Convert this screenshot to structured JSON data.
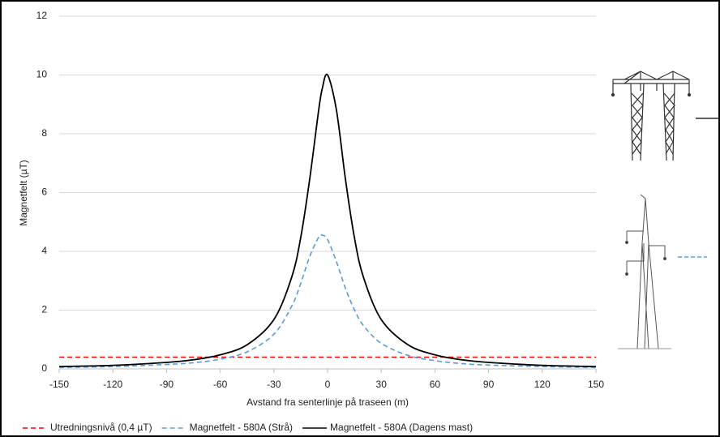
{
  "chart_data": {
    "type": "line",
    "ylabel": "Magnetfelt (µT)",
    "xlabel": "Avstand fra senterlinje på traseen (m)",
    "x": [
      -150,
      -120,
      -90,
      -75,
      -60,
      -45,
      -30,
      -20,
      -15,
      -10,
      -5,
      -3,
      0,
      5,
      10,
      15,
      20,
      30,
      45,
      60,
      75,
      90,
      120,
      150
    ],
    "series": [
      {
        "name": "Utredningsnivå (0,4 µT)",
        "color": "#ff0000",
        "linestyle": "dashed",
        "values": [
          0.4,
          0.4,
          0.4,
          0.4,
          0.4,
          0.4,
          0.4,
          0.4,
          0.4,
          0.4,
          0.4,
          0.4,
          0.4,
          0.4,
          0.4,
          0.4,
          0.4,
          0.4,
          0.4,
          0.4,
          0.4,
          0.4,
          0.4,
          0.4
        ]
      },
      {
        "name": "Magnetfelt - 580A (Strå)",
        "color": "#5b9bd5",
        "linestyle": "dashed",
        "values": [
          0.05,
          0.08,
          0.15,
          0.21,
          0.33,
          0.58,
          1.18,
          2.14,
          2.91,
          3.82,
          4.48,
          4.55,
          4.4,
          3.64,
          2.74,
          2.01,
          1.48,
          0.87,
          0.46,
          0.28,
          0.18,
          0.13,
          0.08,
          0.05
        ]
      },
      {
        "name": "Magnetfelt - 580A (Dagens mast)",
        "color": "#000000",
        "linestyle": "solid",
        "values": [
          0.08,
          0.12,
          0.22,
          0.31,
          0.48,
          0.82,
          1.68,
          3.13,
          4.47,
          6.45,
          8.79,
          9.53,
          10,
          8.79,
          6.45,
          4.47,
          3.13,
          1.68,
          0.82,
          0.48,
          0.31,
          0.22,
          0.12,
          0.08
        ]
      }
    ],
    "xlim": [
      -150,
      150
    ],
    "xticks": [
      -150,
      -120,
      -90,
      -60,
      -30,
      0,
      30,
      60,
      90,
      120,
      150
    ],
    "ylim": [
      0,
      12
    ],
    "yticks": [
      0,
      2,
      4,
      6,
      8,
      10,
      12
    ],
    "grid": true,
    "legend": "bottom"
  }
}
